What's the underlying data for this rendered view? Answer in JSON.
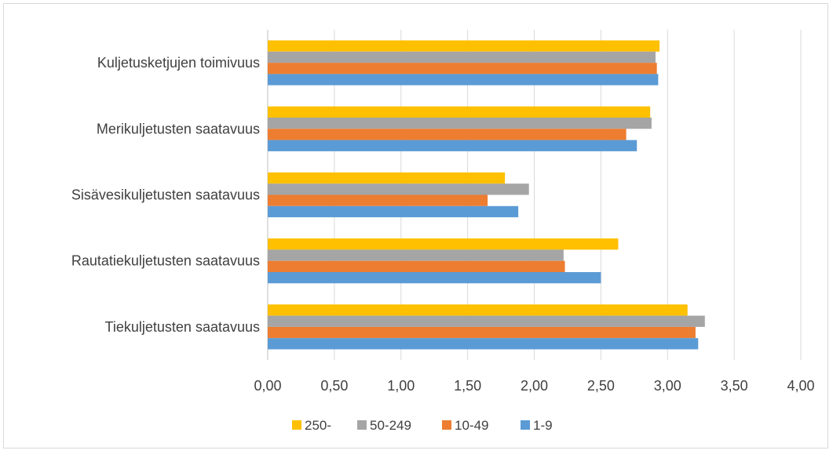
{
  "chart_data": {
    "type": "bar",
    "orientation": "horizontal",
    "categories": [
      "Tiekuljetusten saatavuus",
      "Rautatiekuljetusten saatavuus",
      "Sisävesikuljetusten saatavuus",
      "Merikuljetusten saatavuus",
      "Kuljetusketjujen toimivuus"
    ],
    "series": [
      {
        "name": "1-9",
        "color": "#5b9bd5",
        "values": [
          3.23,
          2.5,
          1.88,
          2.77,
          2.93
        ]
      },
      {
        "name": "10-49",
        "color": "#ed7d31",
        "values": [
          3.21,
          2.23,
          1.65,
          2.69,
          2.92
        ]
      },
      {
        "name": "50-249",
        "color": "#a5a5a5",
        "values": [
          3.28,
          2.22,
          1.96,
          2.88,
          2.91
        ]
      },
      {
        "name": "250-",
        "color": "#ffc000",
        "values": [
          3.15,
          2.63,
          1.78,
          2.87,
          2.94
        ]
      }
    ],
    "xlim": [
      0,
      4
    ],
    "xticks": [
      "0,00",
      "0,50",
      "1,00",
      "1,50",
      "2,00",
      "2,50",
      "3,00",
      "3,50",
      "4,00"
    ],
    "grid": true,
    "legend_position": "bottom",
    "legend_order": [
      "250-",
      "50-249",
      "10-49",
      "1-9"
    ],
    "title": "",
    "xlabel": "",
    "ylabel": ""
  }
}
